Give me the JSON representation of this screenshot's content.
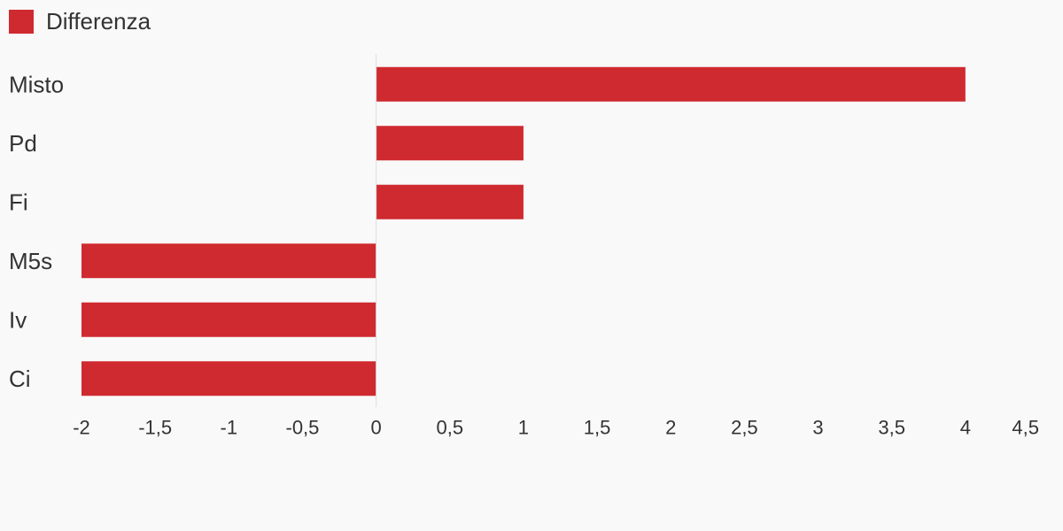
{
  "legend": {
    "label": "Differenza",
    "color": "#cf2a30"
  },
  "chart_data": {
    "type": "bar",
    "orientation": "horizontal",
    "categories": [
      "Misto",
      "Pd",
      "Fi",
      "M5s",
      "Iv",
      "Ci"
    ],
    "series": [
      {
        "name": "Differenza",
        "values": [
          4,
          1,
          1,
          -2,
          -2,
          -2
        ],
        "color": "#cf2a30"
      }
    ],
    "xlim": [
      -2,
      4.5
    ],
    "x_ticks": [
      -2,
      -1.5,
      -1,
      -0.5,
      0,
      0.5,
      1,
      1.5,
      2,
      2.5,
      3,
      3.5,
      4,
      4.5
    ],
    "x_tick_labels": [
      "-2",
      "-1,5",
      "-1",
      "-0,5",
      "0",
      "0,5",
      "1",
      "1,5",
      "2",
      "2,5",
      "3",
      "3,5",
      "4",
      "4,5"
    ],
    "grid": false,
    "legend_position": "top-left"
  }
}
